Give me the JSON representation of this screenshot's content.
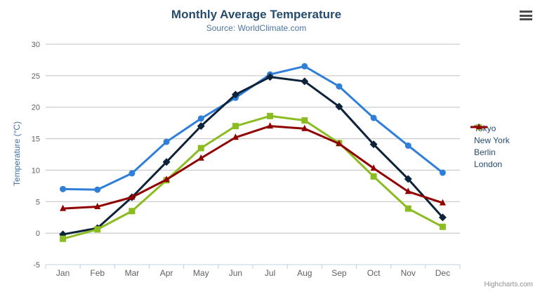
{
  "chart_data": {
    "type": "line",
    "title": "Monthly Average Temperature",
    "subtitle": "Source: WorldClimate.com",
    "xlabel": "",
    "ylabel": "Temperature (°C)",
    "categories": [
      "Jan",
      "Feb",
      "Mar",
      "Apr",
      "May",
      "Jun",
      "Jul",
      "Aug",
      "Sep",
      "Oct",
      "Nov",
      "Dec"
    ],
    "yticks": [
      -5,
      0,
      5,
      10,
      15,
      20,
      25,
      30
    ],
    "ylim": [
      -5,
      30
    ],
    "grid": true,
    "legend_position": "right",
    "series": [
      {
        "name": "Tokyo",
        "color": "#2f7ed8",
        "marker": "circle",
        "values": [
          7.0,
          6.9,
          9.5,
          14.5,
          18.2,
          21.5,
          25.2,
          26.5,
          23.3,
          18.3,
          13.9,
          9.6
        ]
      },
      {
        "name": "New York",
        "color": "#0d233a",
        "marker": "diamond",
        "values": [
          -0.2,
          0.8,
          5.7,
          11.3,
          17.0,
          22.0,
          24.8,
          24.1,
          20.1,
          14.1,
          8.6,
          2.5
        ]
      },
      {
        "name": "Berlin",
        "color": "#8bbc21",
        "marker": "square",
        "values": [
          -0.9,
          0.6,
          3.5,
          8.4,
          13.5,
          17.0,
          18.6,
          17.9,
          14.3,
          9.0,
          3.9,
          1.0
        ]
      },
      {
        "name": "London",
        "color": "#910000",
        "marker": "triangle",
        "values": [
          3.9,
          4.2,
          5.7,
          8.5,
          11.9,
          15.2,
          17.0,
          16.6,
          14.2,
          10.3,
          6.6,
          4.8
        ]
      }
    ]
  },
  "colors": {
    "title": "#274b6d",
    "subtitle": "#4d759e",
    "axis_title": "#4572a7",
    "axis_label": "#606060",
    "grid": "#c0c0c0",
    "axis_line": "#c0d0e0",
    "legend_text": "#274b6d",
    "credits": "#909090",
    "menu_icon": "#4d4d4d"
  },
  "credits_label": "Highcharts.com",
  "icons": {
    "context_menu": "hamburger-menu-icon"
  }
}
